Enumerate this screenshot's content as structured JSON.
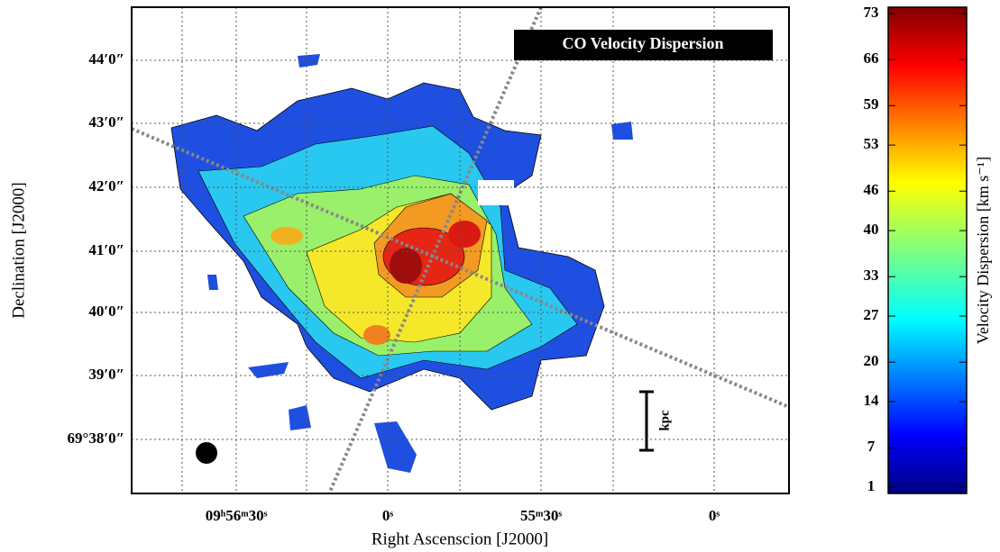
{
  "chart_data": {
    "type": "map",
    "title": "CO Velocity Dispersion",
    "x_label": "Right Ascenscion [J2000]",
    "y_label": "Declination [J2000]",
    "x_tick_labels": [
      "09ʰ56ᵐ30ˢ",
      "0ˢ",
      "55ᵐ30ˢ",
      "0ˢ"
    ],
    "y_tick_labels": [
      "44′0″",
      "43′0″",
      "42′0″",
      "41′0″",
      "40′0″",
      "39′0″",
      "69°38′0″"
    ],
    "scale_bar_label": "kpc",
    "colorbar": {
      "label": "Velocity Dispersion [km s⁻¹]",
      "colormap": "jet",
      "lim": [
        1,
        73
      ],
      "ticks": [
        1,
        7,
        14,
        20,
        27,
        33,
        40,
        46,
        53,
        59,
        66,
        73
      ]
    }
  }
}
